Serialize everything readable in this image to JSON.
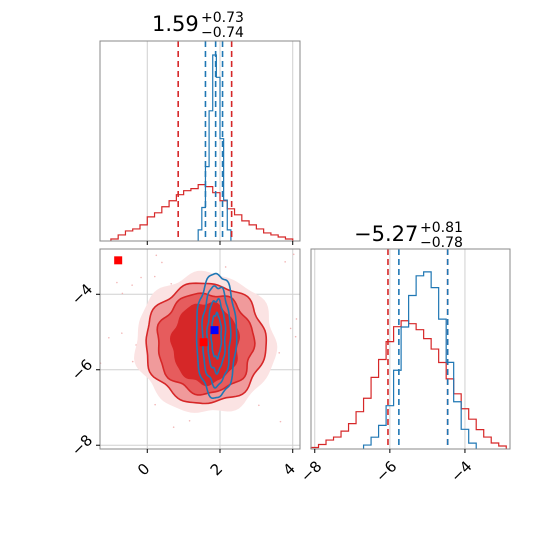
{
  "chart_data": {
    "type": "corner",
    "parameters": [
      {
        "title": {
          "main": "1.59",
          "plus": "+0.73",
          "minus": "−0.74"
        },
        "range": [
          -1.3,
          4.2
        ],
        "ticks": [
          0,
          2,
          4
        ],
        "tick_labels": [
          "0",
          "2",
          "4"
        ],
        "median": 1.59,
        "quantiles_red": [
          0.85,
          2.32
        ],
        "quantiles_blue": [
          1.6,
          2.07
        ],
        "blue_median": 1.88
      },
      {
        "title": {
          "main": "−5.27",
          "plus": "+0.81",
          "minus": "−0.78"
        },
        "range": [
          -8.1,
          -2.8
        ],
        "ticks": [
          -8,
          -6,
          -4
        ],
        "tick_labels": [
          "−8",
          "−6",
          "−4"
        ],
        "median": -5.27,
        "quantiles_red": [
          -6.05,
          -4.46
        ],
        "quantiles_blue": [
          -5.76,
          -4.46
        ],
        "blue_median": -5.1
      }
    ],
    "series": [
      {
        "color": "#d62728",
        "hist_x": {
          "centers": [
            -0.9,
            -0.7,
            -0.5,
            -0.3,
            -0.1,
            0.1,
            0.3,
            0.5,
            0.7,
            0.9,
            1.1,
            1.3,
            1.5,
            1.7,
            1.9,
            2.1,
            2.3,
            2.5,
            2.7,
            2.9,
            3.1,
            3.3,
            3.5,
            3.7,
            3.9
          ],
          "counts": [
            1,
            3,
            5,
            6,
            8,
            12,
            14,
            17,
            20,
            23,
            25,
            26,
            28,
            27,
            24,
            20,
            16,
            13,
            10,
            8,
            6,
            4,
            3,
            2,
            1
          ]
        },
        "hist_y": {
          "centers": [
            -8.0,
            -7.8,
            -7.6,
            -7.4,
            -7.2,
            -7.0,
            -6.8,
            -6.6,
            -6.4,
            -6.2,
            -6.0,
            -5.8,
            -5.6,
            -5.4,
            -5.2,
            -5.0,
            -4.8,
            -4.6,
            -4.4,
            -4.2,
            -4.0,
            -3.8,
            -3.6,
            -3.4,
            -3.2,
            -3.0
          ],
          "counts": [
            1,
            3,
            6,
            8,
            12,
            17,
            25,
            34,
            48,
            60,
            72,
            82,
            86,
            84,
            80,
            74,
            67,
            58,
            47,
            37,
            27,
            20,
            13,
            8,
            4,
            2
          ]
        },
        "marker": {
          "x": -0.8,
          "y": -3.1
        },
        "marker2": {
          "x": 1.55,
          "y": -5.27
        }
      },
      {
        "color": "#1f77b4",
        "hist_x": {
          "centers": [
            1.45,
            1.55,
            1.65,
            1.75,
            1.85,
            1.95,
            2.05,
            2.15,
            2.25
          ],
          "counts": [
            6,
            18,
            40,
            70,
            100,
            88,
            55,
            22,
            6
          ]
        },
        "hist_y": {
          "centers": [
            -6.6,
            -6.4,
            -6.2,
            -6.0,
            -5.8,
            -5.6,
            -5.4,
            -5.2,
            -5.0,
            -4.8,
            -4.6,
            -4.4,
            -4.2,
            -4.0,
            -3.8
          ],
          "counts": [
            2,
            6,
            12,
            22,
            40,
            62,
            78,
            88,
            90,
            82,
            66,
            44,
            24,
            10,
            3
          ]
        },
        "marker": {
          "x": 1.85,
          "y": -4.95
        }
      }
    ],
    "grid": true
  }
}
